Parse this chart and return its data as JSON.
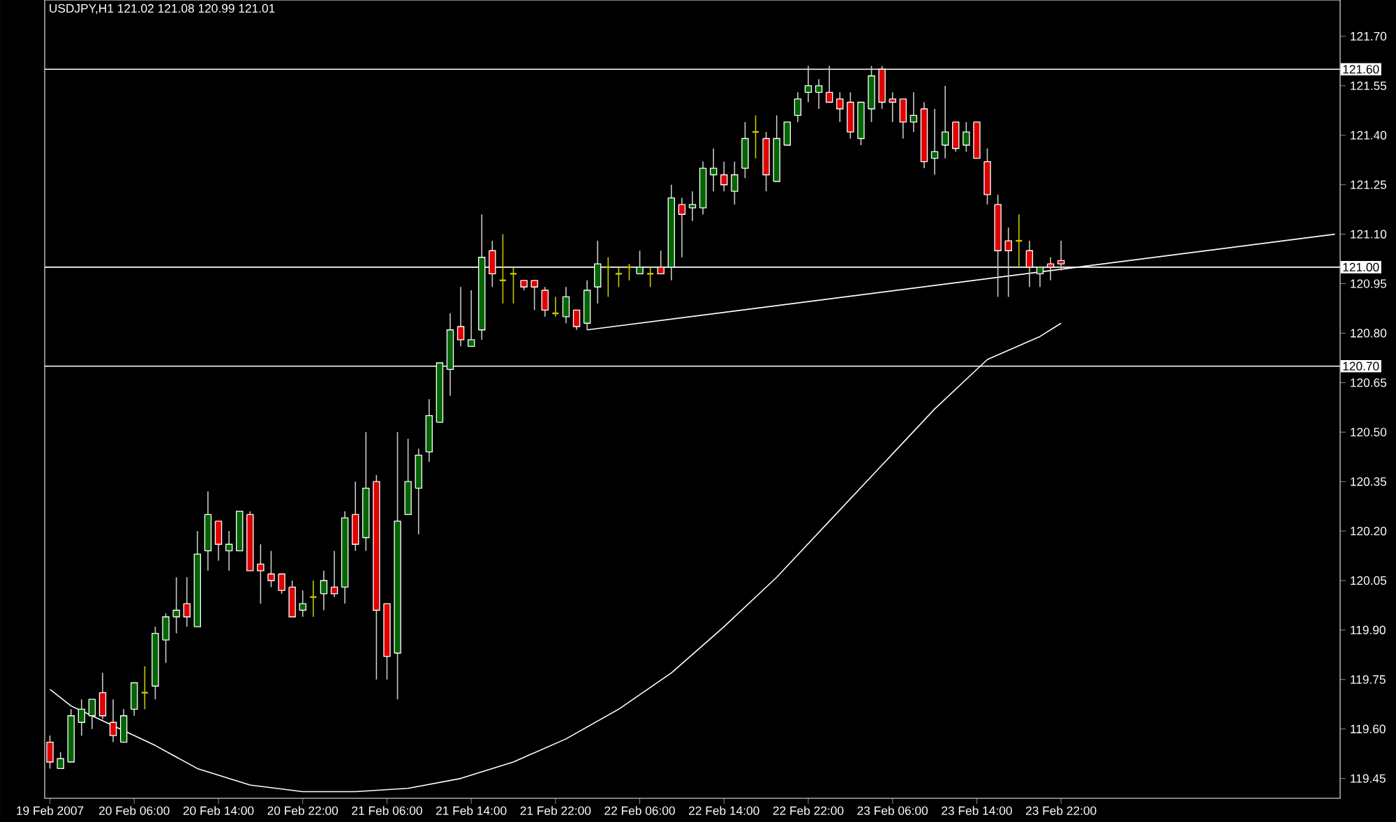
{
  "chart_data": {
    "type": "candlestick",
    "title": "USDJPY,H1  121.02 121.08 120.99 121.01",
    "categories": [
      "19 Feb 2007",
      null,
      null,
      null,
      null,
      null,
      null,
      null,
      "20 Feb 06:00",
      null,
      null,
      null,
      null,
      null,
      null,
      null,
      "20 Feb 14:00",
      null,
      null,
      null,
      null,
      null,
      null,
      null,
      "20 Feb 22:00",
      null,
      null,
      null,
      null,
      null,
      null,
      null,
      "21 Feb 06:00",
      null,
      null,
      null,
      null,
      null,
      null,
      null,
      "21 Feb 14:00",
      null,
      null,
      null,
      null,
      null,
      null,
      null,
      "21 Feb 22:00",
      null,
      null,
      null,
      null,
      null,
      null,
      null,
      "22 Feb 06:00",
      null,
      null,
      null,
      null,
      null,
      null,
      null,
      "22 Feb 14:00",
      null,
      null,
      null,
      null,
      null,
      null,
      null,
      "22 Feb 22:00",
      null,
      null,
      null,
      null,
      null,
      null,
      null,
      "23 Feb 06:00",
      null,
      null,
      null,
      null,
      null,
      null,
      null,
      "23 Feb 14:00",
      null,
      null,
      null,
      null,
      null,
      null,
      null,
      "23 Feb 22:00",
      null,
      null,
      null,
      null,
      null,
      null,
      null,
      null,
      null,
      null,
      null,
      null,
      null,
      null,
      null,
      null,
      null,
      null,
      null,
      null,
      null,
      null,
      null,
      null,
      null,
      null
    ],
    "ohlc": [
      [
        119.56,
        119.58,
        119.48,
        119.5
      ],
      [
        119.48,
        119.53,
        119.48,
        119.51
      ],
      [
        119.5,
        119.66,
        119.5,
        119.64
      ],
      [
        119.62,
        119.69,
        119.58,
        119.66
      ],
      [
        119.64,
        119.69,
        119.6,
        119.69
      ],
      [
        119.71,
        119.77,
        119.63,
        119.64
      ],
      [
        119.62,
        119.69,
        119.56,
        119.58
      ],
      [
        119.56,
        119.66,
        119.56,
        119.64
      ],
      [
        119.66,
        119.74,
        119.64,
        119.74
      ],
      [
        119.71,
        119.79,
        119.66,
        119.71
      ],
      [
        119.73,
        119.91,
        119.69,
        119.89
      ],
      [
        119.87,
        119.95,
        119.8,
        119.94
      ],
      [
        119.94,
        120.06,
        119.89,
        119.96
      ],
      [
        119.98,
        120.06,
        119.91,
        119.94
      ],
      [
        119.91,
        120.2,
        119.91,
        120.13
      ],
      [
        120.14,
        120.32,
        120.08,
        120.25
      ],
      [
        120.23,
        120.23,
        120.11,
        120.16
      ],
      [
        120.14,
        120.2,
        120.08,
        120.16
      ],
      [
        120.14,
        120.26,
        120.14,
        120.26
      ],
      [
        120.25,
        120.26,
        120.08,
        120.08
      ],
      [
        120.1,
        120.16,
        119.98,
        120.08
      ],
      [
        120.07,
        120.14,
        120.03,
        120.05
      ],
      [
        120.07,
        120.07,
        120.01,
        120.02
      ],
      [
        120.03,
        120.05,
        119.94,
        119.94
      ],
      [
        119.96,
        120.02,
        119.94,
        119.98
      ],
      [
        120.0,
        120.05,
        119.94,
        120.0
      ],
      [
        120.01,
        120.08,
        119.96,
        120.05
      ],
      [
        120.03,
        120.14,
        120.0,
        120.01
      ],
      [
        120.03,
        120.26,
        119.98,
        120.24
      ],
      [
        120.25,
        120.35,
        120.14,
        120.16
      ],
      [
        120.18,
        120.5,
        120.14,
        120.33
      ],
      [
        120.35,
        120.37,
        119.75,
        119.96
      ],
      [
        119.98,
        119.98,
        119.75,
        119.82
      ],
      [
        119.83,
        120.5,
        119.69,
        120.23
      ],
      [
        120.25,
        120.48,
        120.25,
        120.35
      ],
      [
        120.33,
        120.45,
        120.19,
        120.43
      ],
      [
        120.44,
        120.6,
        120.41,
        120.55
      ],
      [
        120.53,
        120.71,
        120.53,
        120.71
      ],
      [
        120.69,
        120.86,
        120.61,
        120.81
      ],
      [
        120.82,
        120.94,
        120.76,
        120.78
      ],
      [
        120.76,
        120.93,
        120.76,
        120.78
      ],
      [
        120.81,
        121.16,
        120.78,
        121.03
      ],
      [
        121.05,
        121.08,
        120.94,
        120.98
      ],
      [
        120.96,
        121.1,
        120.89,
        120.96
      ],
      [
        120.98,
        121.0,
        120.89,
        120.98
      ],
      [
        120.96,
        120.96,
        120.93,
        120.94
      ],
      [
        120.96,
        120.96,
        120.87,
        120.94
      ],
      [
        120.93,
        120.94,
        120.85,
        120.87
      ],
      [
        120.86,
        120.91,
        120.85,
        120.86
      ],
      [
        120.85,
        120.94,
        120.83,
        120.91
      ],
      [
        120.87,
        120.87,
        120.81,
        120.82
      ],
      [
        120.83,
        120.96,
        120.81,
        120.93
      ],
      [
        120.94,
        121.08,
        120.89,
        121.01
      ],
      [
        121.0,
        121.03,
        120.91,
        121.0
      ],
      [
        120.98,
        121.0,
        120.94,
        120.98
      ],
      [
        121.0,
        121.01,
        120.96,
        121.0
      ],
      [
        120.98,
        121.05,
        120.98,
        121.0
      ],
      [
        120.98,
        121.0,
        120.94,
        120.98
      ],
      [
        121.0,
        121.05,
        120.98,
        120.98
      ],
      [
        121.0,
        121.25,
        120.96,
        121.21
      ],
      [
        121.19,
        121.21,
        121.03,
        121.16
      ],
      [
        121.18,
        121.23,
        121.14,
        121.19
      ],
      [
        121.18,
        121.32,
        121.16,
        121.3
      ],
      [
        121.28,
        121.36,
        121.23,
        121.3
      ],
      [
        121.28,
        121.32,
        121.23,
        121.25
      ],
      [
        121.23,
        121.32,
        121.19,
        121.28
      ],
      [
        121.3,
        121.44,
        121.27,
        121.39
      ],
      [
        121.41,
        121.46,
        121.33,
        121.41
      ],
      [
        121.39,
        121.41,
        121.23,
        121.28
      ],
      [
        121.26,
        121.46,
        121.26,
        121.39
      ],
      [
        121.37,
        121.44,
        121.37,
        121.44
      ],
      [
        121.46,
        121.53,
        121.44,
        121.51
      ],
      [
        121.53,
        121.61,
        121.5,
        121.55
      ],
      [
        121.53,
        121.57,
        121.48,
        121.55
      ],
      [
        121.53,
        121.61,
        121.5,
        121.5
      ],
      [
        121.51,
        121.53,
        121.44,
        121.48
      ],
      [
        121.5,
        121.53,
        121.39,
        121.41
      ],
      [
        121.39,
        121.5,
        121.37,
        121.5
      ],
      [
        121.48,
        121.61,
        121.44,
        121.58
      ],
      [
        121.6,
        121.61,
        121.48,
        121.5
      ],
      [
        121.51,
        121.53,
        121.44,
        121.5
      ],
      [
        121.51,
        121.51,
        121.39,
        121.44
      ],
      [
        121.44,
        121.53,
        121.41,
        121.46
      ],
      [
        121.48,
        121.5,
        121.3,
        121.32
      ],
      [
        121.33,
        121.48,
        121.28,
        121.35
      ],
      [
        121.37,
        121.55,
        121.33,
        121.41
      ],
      [
        121.44,
        121.44,
        121.35,
        121.36
      ],
      [
        121.37,
        121.44,
        121.35,
        121.41
      ],
      [
        121.44,
        121.44,
        121.33,
        121.33
      ],
      [
        121.32,
        121.36,
        121.19,
        121.22
      ],
      [
        121.19,
        121.22,
        120.91,
        121.05
      ],
      [
        121.08,
        121.12,
        120.91,
        121.05
      ],
      [
        121.08,
        121.16,
        121.0,
        121.08
      ],
      [
        121.05,
        121.08,
        120.94,
        121.0
      ],
      [
        120.98,
        121.0,
        120.94,
        121.0
      ],
      [
        121.01,
        121.03,
        120.96,
        121.0
      ],
      [
        121.02,
        121.08,
        120.99,
        121.01
      ],
      null,
      null,
      null,
      null,
      null,
      null,
      null,
      null,
      null,
      null,
      null,
      null,
      null,
      null,
      null,
      null,
      null,
      null,
      null,
      null,
      null,
      null,
      null,
      null,
      null,
      null
    ],
    "colors": [
      "#e00000",
      "#006400",
      "#006400",
      "#006400",
      "#006400",
      "#e00000",
      "#e00000",
      "#006400",
      "#006400",
      "#c8c800",
      "#006400",
      "#006400",
      "#006400",
      "#e00000",
      "#006400",
      "#006400",
      "#e00000",
      "#006400",
      "#006400",
      "#e00000",
      "#e00000",
      "#e00000",
      "#e00000",
      "#e00000",
      "#006400",
      "#c8c800",
      "#006400",
      "#e00000",
      "#006400",
      "#e00000",
      "#006400",
      "#e00000",
      "#e00000",
      "#006400",
      "#006400",
      "#006400",
      "#006400",
      "#006400",
      "#006400",
      "#e00000",
      "#006400",
      "#006400",
      "#e00000",
      "#c8c800",
      "#c8c800",
      "#e00000",
      "#e00000",
      "#e00000",
      "#c8c800",
      "#006400",
      "#e00000",
      "#006400",
      "#006400",
      "#c8c800",
      "#c8c800",
      "#c8c800",
      "#006400",
      "#c8c800",
      "#e00000",
      "#006400",
      "#e00000",
      "#006400",
      "#006400",
      "#006400",
      "#e00000",
      "#006400",
      "#006400",
      "#c8c800",
      "#e00000",
      "#006400",
      "#006400",
      "#006400",
      "#006400",
      "#006400",
      "#e00000",
      "#e00000",
      "#e00000",
      "#006400",
      "#006400",
      "#e00000",
      "#e00000",
      "#e00000",
      "#006400",
      "#e00000",
      "#006400",
      "#006400",
      "#e00000",
      "#006400",
      "#e00000",
      "#e00000",
      "#e00000",
      "#e00000",
      "#c8c800",
      "#e00000",
      "#006400",
      "#e00000",
      "#e00000",
      null,
      null,
      null,
      null,
      null,
      null,
      null,
      null,
      null,
      null,
      null,
      null,
      null,
      null,
      null,
      null,
      null,
      null,
      null,
      null,
      null,
      null,
      null,
      null,
      null,
      null
    ],
    "series": [
      {
        "type": "line",
        "color": "#ffffff",
        "values": [
          119.72,
          null,
          119.67,
          null,
          null,
          null,
          119.61,
          null,
          null,
          null,
          119.55,
          null,
          null,
          null,
          119.48,
          null,
          null,
          null,
          null,
          119.43,
          null,
          null,
          null,
          null,
          119.41,
          null,
          null,
          null,
          null,
          119.41,
          null,
          null,
          null,
          null,
          119.42,
          null,
          null,
          null,
          null,
          119.45,
          null,
          null,
          null,
          null,
          119.5,
          null,
          null,
          null,
          null,
          119.57,
          null,
          null,
          null,
          null,
          119.66,
          null,
          null,
          null,
          null,
          119.77,
          null,
          null,
          null,
          null,
          119.91,
          null,
          null,
          null,
          null,
          120.06,
          null,
          null,
          null,
          null,
          120.23,
          null,
          null,
          null,
          null,
          120.4,
          null,
          null,
          null,
          null,
          120.57,
          null,
          null,
          null,
          null,
          120.72,
          null,
          null,
          null,
          null,
          120.79,
          null,
          120.83,
          null,
          null,
          null,
          null,
          null,
          null,
          null,
          null,
          null,
          null,
          null,
          null,
          null,
          null,
          null,
          null,
          null,
          null,
          null,
          null,
          null,
          null,
          null,
          null,
          null,
          null
        ]
      },
      {
        "type": "line",
        "color": "#ffffff",
        "values": [
          null,
          null,
          null,
          null,
          null,
          null,
          null,
          null,
          null,
          null,
          null,
          null,
          null,
          null,
          null,
          null,
          null,
          null,
          null,
          null,
          null,
          null,
          null,
          null,
          null,
          null,
          null,
          null,
          null,
          null,
          null,
          null,
          null,
          null,
          null,
          null,
          null,
          null,
          null,
          null,
          null,
          null,
          null,
          null,
          null,
          null,
          null,
          null,
          null,
          null,
          null,
          120.81,
          null,
          null,
          null,
          null,
          null,
          null,
          null,
          null,
          null,
          null,
          null,
          null,
          null,
          null,
          null,
          null,
          null,
          null,
          null,
          null,
          null,
          null,
          null,
          null,
          null,
          null,
          null,
          null,
          null,
          null,
          null,
          null,
          null,
          null,
          null,
          null,
          null,
          null,
          null,
          null,
          null,
          null,
          null,
          null,
          null,
          null,
          null,
          null,
          null,
          null,
          null,
          null,
          null,
          null,
          null,
          null,
          null,
          null,
          null,
          null,
          null,
          null,
          null,
          null,
          null,
          null,
          null,
          null,
          null,
          null,
          121.1
        ]
      }
    ],
    "ylim": [
      119.39,
      121.81
    ],
    "yticks": [
      {
        "value": 119.45,
        "label": "119.45"
      },
      {
        "value": 119.6,
        "label": "119.60"
      },
      {
        "value": 119.75,
        "label": "119.75"
      },
      {
        "value": 119.9,
        "label": "119.90"
      },
      {
        "value": 120.05,
        "label": "120.05"
      },
      {
        "value": 120.2,
        "label": "120.20"
      },
      {
        "value": 120.35,
        "label": "120.35"
      },
      {
        "value": 120.5,
        "label": "120.50"
      },
      {
        "value": 120.65,
        "label": "120.65"
      },
      {
        "value": 120.8,
        "label": "120.80"
      },
      {
        "value": 120.95,
        "label": "120.95"
      },
      {
        "value": 121.1,
        "label": "121.10"
      },
      {
        "value": 121.25,
        "label": "121.25"
      },
      {
        "value": 121.4,
        "label": "121.40"
      },
      {
        "value": 121.55,
        "label": "121.55"
      },
      {
        "value": 121.7,
        "label": "121.70"
      }
    ],
    "ref_lines": [
      {
        "axis": "y",
        "value": 121.6,
        "label": "121.60",
        "color": "#ffffff"
      },
      {
        "axis": "y",
        "value": 121.0,
        "label": "121.00",
        "color": "#ffffff"
      },
      {
        "axis": "y",
        "value": 120.7,
        "label": "120.70",
        "color": "#ffffff"
      }
    ]
  }
}
